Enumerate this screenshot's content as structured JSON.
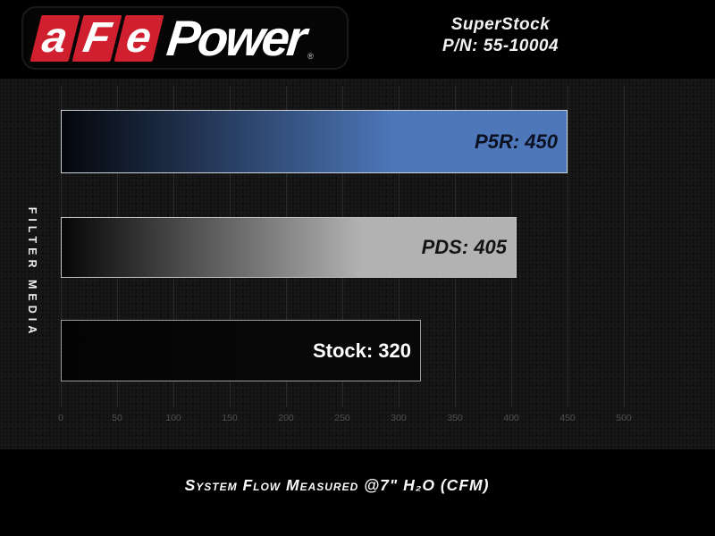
{
  "header": {
    "logo": {
      "red_letters": [
        "a",
        "F",
        "e"
      ],
      "word": "Power",
      "registered_mark": "®",
      "red_color": "#d0202f"
    },
    "product_line1": "SuperStock",
    "product_line2": "P/N: 55-10004"
  },
  "chart_data": {
    "type": "bar",
    "orientation": "horizontal",
    "ylabel": "FILTER MEDIA",
    "xlabel": "System Flow Measured @7\" H₂O (CFM)",
    "xlim": [
      0,
      500
    ],
    "ticks": [
      0,
      50,
      100,
      150,
      200,
      250,
      300,
      350,
      400,
      450,
      500
    ],
    "grid": true,
    "legend": "none",
    "categories": [
      "P5R",
      "PDS",
      "Stock"
    ],
    "values": [
      450,
      405,
      320
    ],
    "bars": [
      {
        "name": "P5R",
        "label": "P5R: 450",
        "value": 450,
        "fill_from": "#04060b",
        "fill_to": "#4d77b9",
        "border": "#ccd2da",
        "label_color": "#0b1120",
        "label_italic": true
      },
      {
        "name": "PDS",
        "label": "PDS: 405",
        "value": 405,
        "fill_from": "#060606",
        "fill_to": "#b2b2b2",
        "border": "#c6c6c6",
        "label_color": "#141414",
        "label_italic": true
      },
      {
        "name": "Stock",
        "label": "Stock: 320",
        "value": 320,
        "fill_from": "#030303",
        "fill_to": "#080808",
        "border": "#9c9c9c",
        "label_color": "#ffffff",
        "label_italic": false
      }
    ]
  },
  "footer": {
    "caption": "System Flow Measured @7\" H₂O (CFM)"
  }
}
